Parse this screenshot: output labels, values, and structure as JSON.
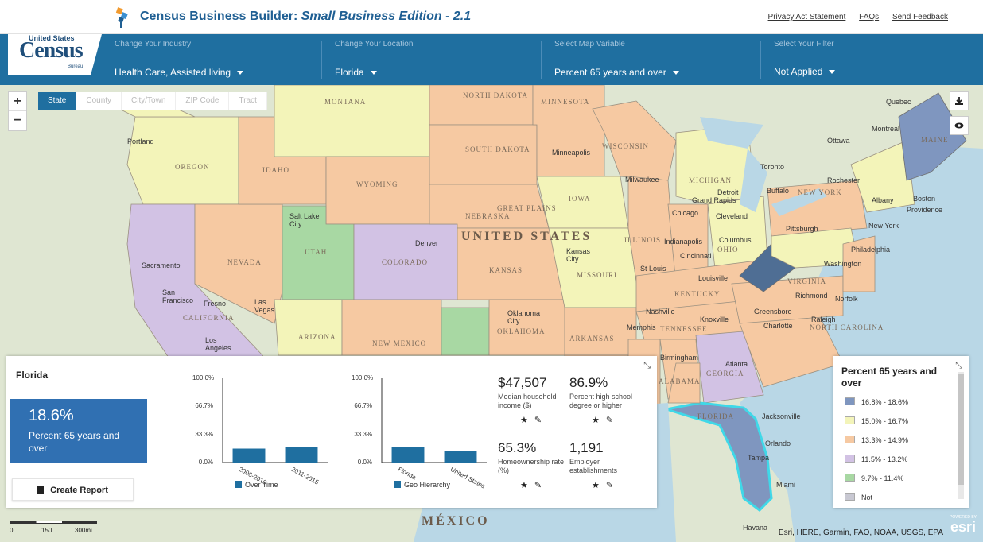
{
  "header": {
    "title_main": "Census Business Builder: ",
    "title_italic": "Small Business Edition - 2.1",
    "links": [
      "Privacy Act Statement",
      "FAQs",
      "Send Feedback"
    ],
    "logo": {
      "top": "United States",
      "main": "Census",
      "bottom": "Bureau"
    }
  },
  "selectors": [
    {
      "label": "Change Your Industry",
      "value": "Health Care, Assisted living"
    },
    {
      "label": "Change Your Location",
      "value": "Florida"
    },
    {
      "label": "Select Map Variable",
      "value": "Percent 65 years and over"
    },
    {
      "label": "Select Your Filter",
      "value": "Not Applied"
    }
  ],
  "map": {
    "zoom_in": "+",
    "zoom_out": "−",
    "geo_tabs": [
      "State",
      "County",
      "City/Town",
      "ZIP Code",
      "Tract"
    ],
    "active_tab": "State",
    "download_icon": "download-icon",
    "eye_icon": "eye-icon",
    "labels": [
      "UNITED STATES",
      "MÉXICO",
      "MONTANA",
      "NORTH DAKOTA",
      "MINNESOTA",
      "SOUTH DAKOTA",
      "WISCONSIN",
      "OREGON",
      "IDAHO",
      "WYOMING",
      "IOWA",
      "NEBRASKA",
      "NEVADA",
      "UTAH",
      "COLORADO",
      "KANSAS",
      "MISSOURI",
      "ILLINOIS",
      "CALIFORNIA",
      "ARIZONA",
      "NEW MEXICO",
      "OKLAHOMA",
      "ARKANSAS",
      "TENNESSEE",
      "KENTUCKY",
      "OHIO",
      "MICHIGAN",
      "NEW YORK",
      "VIRGINIA",
      "NORTH CAROLINA",
      "GEORGIA",
      "ALABAMA",
      "FLORIDA",
      "MAINE",
      "GREAT PLAINS",
      "Portland",
      "Salt Lake City",
      "Denver",
      "Sacramento",
      "San Francisco",
      "Fresno",
      "Las Vegas",
      "Los Angeles",
      "Kansas City",
      "St Louis",
      "Chicago",
      "Milwaukee",
      "Minneapolis",
      "Detroit",
      "Grand Rapids",
      "Toronto",
      "Ottawa",
      "Montreal",
      "Quebec",
      "Buffalo",
      "Rochester",
      "Boston",
      "Providence",
      "New York",
      "Philadelphia",
      "Washington",
      "Pittsburgh",
      "Cleveland",
      "Columbus",
      "Indianapolis",
      "Cincinnati",
      "Louisville",
      "Nashville",
      "Knoxville",
      "Memphis",
      "Charlotte",
      "Raleigh",
      "Greensboro",
      "Richmond",
      "Norfolk",
      "Atlanta",
      "Birmingham",
      "Jacksonville",
      "Orlando",
      "Tampa",
      "Miami",
      "Havana",
      "Oklahoma City",
      "Albany"
    ]
  },
  "panel": {
    "place": "Florida",
    "headline_value": "18.6%",
    "headline_label": "Percent 65 years and over",
    "create_report": "Create Report",
    "collapse_icon": "collapse-icon",
    "stats": [
      {
        "value": "$47,507",
        "label": "Median household income ($)"
      },
      {
        "value": "86.9%",
        "label": "Percent high school degree or higher"
      },
      {
        "value": "65.3%",
        "label": "Homeownership rate (%)"
      },
      {
        "value": "1,191",
        "label": "Employer establishments"
      }
    ],
    "stat_icons": [
      "star-icon",
      "pencil-icon"
    ]
  },
  "chart_data": [
    {
      "type": "bar",
      "categories": [
        "2006-2010",
        "2011-2015"
      ],
      "values": [
        16.5,
        18.6
      ],
      "ylim": [
        0,
        100
      ],
      "yticks": [
        "100.0%",
        "66.7%",
        "33.3%",
        "0.0%"
      ],
      "legend": "Over Time",
      "color": "#1f6fa0"
    },
    {
      "type": "bar",
      "categories": [
        "Florida",
        "United States"
      ],
      "values": [
        18.6,
        14.1
      ],
      "ylim": [
        0,
        100
      ],
      "yticks": [
        "100.0%",
        "66.7%",
        "33.3%",
        "0.0%"
      ],
      "legend": "Geo Hierarchy",
      "color": "#1f6fa0"
    }
  ],
  "legend": {
    "title": "Percent 65 years and over",
    "items": [
      {
        "label": "16.8% - 18.6%",
        "color": "#7f96bf"
      },
      {
        "label": "15.0% - 16.7%",
        "color": "#f3f4b9"
      },
      {
        "label": "13.3% - 14.9%",
        "color": "#f6c9a2"
      },
      {
        "label": "11.5% - 13.2%",
        "color": "#d2c2e4"
      },
      {
        "label": "9.7% - 11.4%",
        "color": "#a8d8a3"
      },
      {
        "label": "Not",
        "color": "#c8c8d2"
      }
    ]
  },
  "scale": {
    "ticks": [
      "0",
      "150",
      "300mi"
    ]
  },
  "attribution": "Esri, HERE, Garmin, FAO, NOAA, USGS, EPA",
  "esri": {
    "powered": "POWERED BY",
    "name": "esri"
  }
}
